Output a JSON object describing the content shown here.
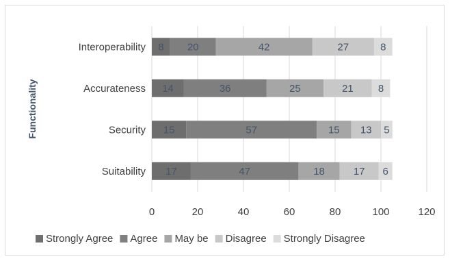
{
  "chart_data": {
    "type": "bar",
    "orientation": "horizontal",
    "stacked": true,
    "ylabel": "Functionality",
    "xlabel": "",
    "xlim": [
      0,
      120
    ],
    "xticks": [
      0,
      20,
      40,
      60,
      80,
      100,
      120
    ],
    "grid": true,
    "legend_position": "bottom",
    "categories": [
      "Suitability",
      "Security",
      "Accurateness",
      "Interoperability"
    ],
    "series": [
      {
        "name": "Strongly Agree",
        "values": [
          17,
          15,
          14,
          8
        ],
        "color": "#6e6e6e"
      },
      {
        "name": "Agree",
        "values": [
          47,
          57,
          36,
          20
        ],
        "color": "#7f7f7f"
      },
      {
        "name": "May be",
        "values": [
          18,
          15,
          25,
          42
        ],
        "color": "#a6a6a6"
      },
      {
        "name": "Disagree",
        "values": [
          17,
          13,
          21,
          27
        ],
        "color": "#c8c8c8"
      },
      {
        "name": "Strongly Disagree",
        "values": [
          6,
          5,
          8,
          8
        ],
        "color": "#dcdcdc"
      }
    ]
  }
}
